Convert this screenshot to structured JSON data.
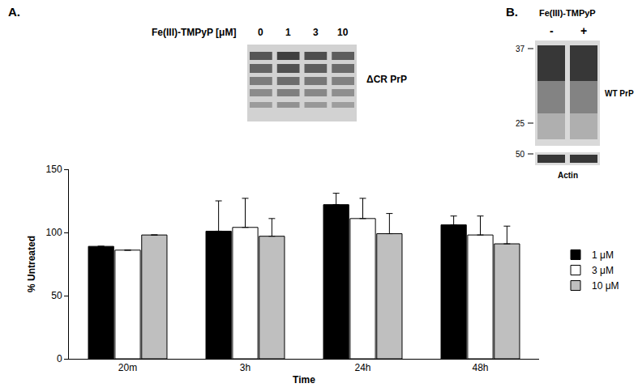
{
  "chart_data": {
    "type": "bar",
    "x_label": "Time",
    "y_label": "% Untreated",
    "categories": [
      "20m",
      "3h",
      "24h",
      "48h"
    ],
    "series": [
      {
        "name": "1 μM",
        "color": "#000000",
        "values": [
          89,
          101,
          122,
          106
        ],
        "errors": [
          null,
          24,
          9,
          7
        ]
      },
      {
        "name": "3 μM",
        "color": "#ffffff",
        "values": [
          86,
          104,
          111,
          98
        ],
        "errors": [
          null,
          23,
          16,
          15
        ]
      },
      {
        "name": "10 μM",
        "color": "#bfbfbf",
        "values": [
          98,
          97,
          99,
          91
        ],
        "errors": [
          null,
          14,
          16,
          14
        ]
      }
    ],
    "ylim": [
      0,
      150
    ],
    "yticks": [
      0,
      50,
      100,
      150
    ],
    "grid": false,
    "legend": "right"
  },
  "panel_a": {
    "label": "A.",
    "treatment_label": "Fe(III)-TMPyP [μM]",
    "lanes": [
      "0",
      "1",
      "3",
      "10"
    ],
    "blot_label": "ΔCR PrP"
  },
  "panel_b": {
    "label": "B.",
    "treatment_label": "Fe(III)-TMPyP",
    "lanes": [
      "-",
      "+"
    ],
    "markers": [
      37,
      25,
      50
    ],
    "blot_labels": [
      "WT PrP",
      "Actin"
    ]
  }
}
